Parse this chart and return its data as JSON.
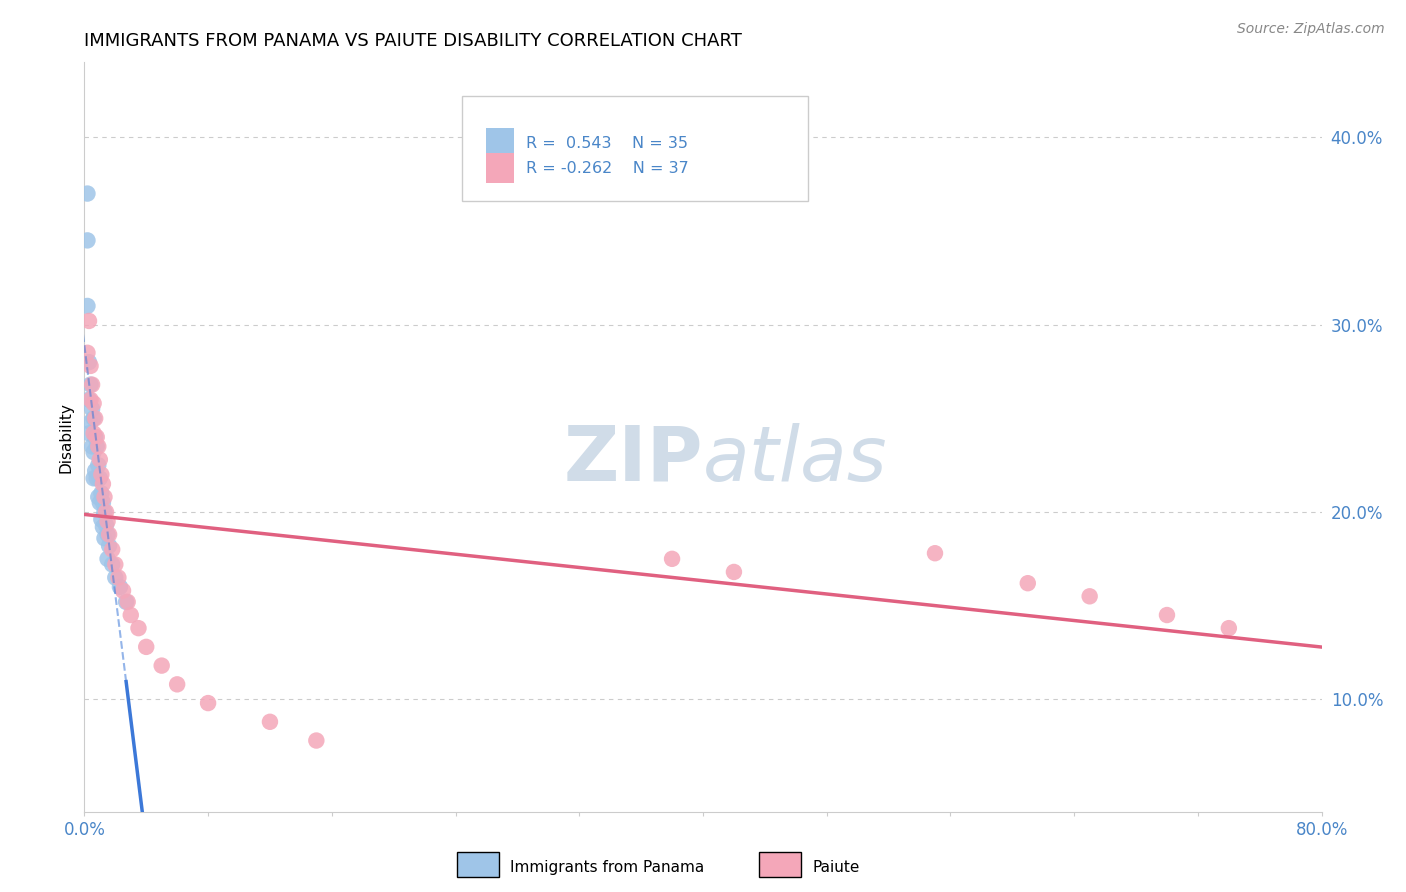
{
  "title": "IMMIGRANTS FROM PANAMA VS PAIUTE DISABILITY CORRELATION CHART",
  "source": "Source: ZipAtlas.com",
  "ylabel": "Disability",
  "xlim": [
    0.0,
    0.8
  ],
  "ylim": [
    0.04,
    0.44
  ],
  "yticks": [
    0.1,
    0.2,
    0.3,
    0.4
  ],
  "ytick_labels": [
    "10.0%",
    "20.0%",
    "30.0%",
    "40.0%"
  ],
  "xtick_vals": [
    0.0,
    0.08,
    0.16,
    0.24,
    0.32,
    0.4,
    0.48,
    0.56,
    0.64,
    0.72,
    0.8
  ],
  "r_panama": 0.543,
  "n_panama": 35,
  "r_paiute": -0.262,
  "n_paiute": 37,
  "color_panama": "#9fc5e8",
  "color_paiute": "#f4a7b9",
  "color_panama_line": "#3c78d8",
  "color_paiute_line": "#e06080",
  "color_axis_labels": "#4a86c8",
  "color_grid": "#cccccc",
  "watermark_color": "#d0dce8",
  "legend_label_1": "Immigrants from Panama",
  "legend_label_2": "Paiute",
  "panama_x": [
    0.002,
    0.002,
    0.002,
    0.003,
    0.003,
    0.003,
    0.004,
    0.004,
    0.005,
    0.005,
    0.006,
    0.006,
    0.006,
    0.007,
    0.007,
    0.008,
    0.008,
    0.009,
    0.009,
    0.01,
    0.01,
    0.011,
    0.011,
    0.012,
    0.012,
    0.013,
    0.013,
    0.014,
    0.015,
    0.015,
    0.016,
    0.018,
    0.02,
    0.023,
    0.027
  ],
  "panama_y": [
    0.37,
    0.345,
    0.31,
    0.28,
    0.26,
    0.242,
    0.268,
    0.248,
    0.255,
    0.235,
    0.25,
    0.232,
    0.218,
    0.24,
    0.222,
    0.235,
    0.218,
    0.225,
    0.208,
    0.218,
    0.205,
    0.21,
    0.196,
    0.205,
    0.192,
    0.2,
    0.186,
    0.193,
    0.188,
    0.175,
    0.182,
    0.172,
    0.165,
    0.16,
    0.152
  ],
  "paiute_x": [
    0.002,
    0.003,
    0.004,
    0.004,
    0.005,
    0.006,
    0.006,
    0.007,
    0.008,
    0.009,
    0.01,
    0.011,
    0.012,
    0.013,
    0.014,
    0.015,
    0.016,
    0.018,
    0.02,
    0.022,
    0.025,
    0.028,
    0.03,
    0.035,
    0.04,
    0.05,
    0.06,
    0.08,
    0.12,
    0.15,
    0.38,
    0.42,
    0.55,
    0.61,
    0.65,
    0.7,
    0.74
  ],
  "paiute_y": [
    0.285,
    0.302,
    0.26,
    0.278,
    0.268,
    0.258,
    0.242,
    0.25,
    0.24,
    0.235,
    0.228,
    0.22,
    0.215,
    0.208,
    0.2,
    0.195,
    0.188,
    0.18,
    0.172,
    0.165,
    0.158,
    0.152,
    0.145,
    0.138,
    0.128,
    0.118,
    0.108,
    0.098,
    0.088,
    0.078,
    0.175,
    0.168,
    0.178,
    0.162,
    0.155,
    0.145,
    0.138
  ]
}
